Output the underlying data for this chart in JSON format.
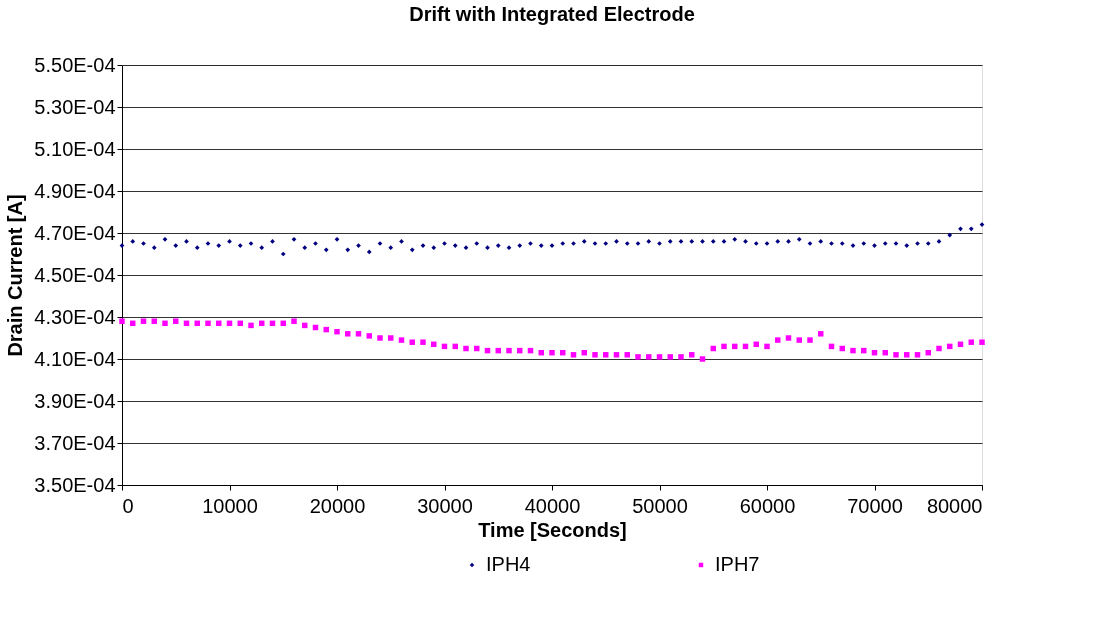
{
  "chart_data": {
    "type": "scatter",
    "title": "Drift with  Integrated Electrode",
    "xlabel": "Time [Seconds]",
    "ylabel": "Drain Current [A]",
    "x": [
      0,
      1000,
      2000,
      3000,
      4000,
      5000,
      6000,
      7000,
      8000,
      9000,
      10000,
      11000,
      12000,
      13000,
      14000,
      15000,
      16000,
      17000,
      18000,
      19000,
      20000,
      21000,
      22000,
      23000,
      24000,
      25000,
      26000,
      27000,
      28000,
      29000,
      30000,
      31000,
      32000,
      33000,
      34000,
      35000,
      36000,
      37000,
      38000,
      39000,
      40000,
      41000,
      42000,
      43000,
      44000,
      45000,
      46000,
      47000,
      48000,
      49000,
      50000,
      51000,
      52000,
      53000,
      54000,
      55000,
      56000,
      57000,
      58000,
      59000,
      60000,
      61000,
      62000,
      63000,
      64000,
      65000,
      66000,
      67000,
      68000,
      69000,
      70000,
      71000,
      72000,
      73000,
      74000,
      75000,
      76000,
      77000,
      78000,
      79000,
      80000
    ],
    "series": [
      {
        "name": "IPH4",
        "color": "#000080",
        "marker": "diamond",
        "values": [
          0.000464,
          0.000466,
          0.000465,
          0.000463,
          0.000467,
          0.000464,
          0.000466,
          0.000463,
          0.000465,
          0.000464,
          0.000466,
          0.000464,
          0.000465,
          0.000463,
          0.000466,
          0.00046,
          0.000467,
          0.000463,
          0.000465,
          0.000462,
          0.000467,
          0.000462,
          0.000464,
          0.000461,
          0.000465,
          0.000463,
          0.000466,
          0.000462,
          0.000464,
          0.000463,
          0.000465,
          0.000464,
          0.000463,
          0.000465,
          0.000463,
          0.000464,
          0.000463,
          0.000464,
          0.000465,
          0.000464,
          0.000464,
          0.000465,
          0.000465,
          0.000466,
          0.000465,
          0.000465,
          0.000466,
          0.000465,
          0.000465,
          0.000466,
          0.000465,
          0.000466,
          0.000466,
          0.000466,
          0.000466,
          0.000466,
          0.000466,
          0.000467,
          0.000466,
          0.000465,
          0.000465,
          0.000466,
          0.000466,
          0.000467,
          0.000465,
          0.000466,
          0.000465,
          0.000465,
          0.000464,
          0.000465,
          0.000464,
          0.000465,
          0.000465,
          0.000464,
          0.000465,
          0.000465,
          0.000466,
          0.000469,
          0.000472,
          0.000472,
          0.000474
        ]
      },
      {
        "name": "IPH7",
        "color": "#ff00ff",
        "marker": "square",
        "values": [
          0.000428,
          0.000427,
          0.000428,
          0.000428,
          0.000427,
          0.000428,
          0.000427,
          0.000427,
          0.000427,
          0.000427,
          0.000427,
          0.000427,
          0.000426,
          0.000427,
          0.000427,
          0.000427,
          0.000428,
          0.000426,
          0.000425,
          0.000424,
          0.000423,
          0.000422,
          0.000422,
          0.000421,
          0.00042,
          0.00042,
          0.000419,
          0.000418,
          0.000418,
          0.000417,
          0.000416,
          0.000416,
          0.000415,
          0.000415,
          0.000414,
          0.000414,
          0.000414,
          0.000414,
          0.000414,
          0.000413,
          0.000413,
          0.000413,
          0.000412,
          0.000413,
          0.000412,
          0.000412,
          0.000412,
          0.000412,
          0.000411,
          0.000411,
          0.000411,
          0.000411,
          0.000411,
          0.000412,
          0.00041,
          0.000415,
          0.000416,
          0.000416,
          0.000416,
          0.000417,
          0.000416,
          0.000419,
          0.00042,
          0.000419,
          0.000419,
          0.000422,
          0.000416,
          0.000415,
          0.000414,
          0.000414,
          0.000413,
          0.000413,
          0.000412,
          0.000412,
          0.000412,
          0.000413,
          0.000415,
          0.000416,
          0.000417,
          0.000418,
          0.000418
        ]
      }
    ],
    "xlim": [
      0,
      80000
    ],
    "xticks": [
      0,
      10000,
      20000,
      30000,
      40000,
      50000,
      60000,
      70000,
      80000
    ],
    "ylim": [
      0.00035,
      0.00055
    ],
    "yticks": [
      {
        "value": 0.00035,
        "label": "3.50E-04"
      },
      {
        "value": 0.00037,
        "label": "3.70E-04"
      },
      {
        "value": 0.00039,
        "label": "3.90E-04"
      },
      {
        "value": 0.00041,
        "label": "4.10E-04"
      },
      {
        "value": 0.00043,
        "label": "4.30E-04"
      },
      {
        "value": 0.00045,
        "label": "4.50E-04"
      },
      {
        "value": 0.00047,
        "label": "4.70E-04"
      },
      {
        "value": 0.00049,
        "label": "4.90E-04"
      },
      {
        "value": 0.00051,
        "label": "5.10E-04"
      },
      {
        "value": 0.00053,
        "label": "5.30E-04"
      },
      {
        "value": 0.00055,
        "label": "5.50E-04"
      }
    ],
    "grid": "y",
    "legend": "bottom"
  }
}
